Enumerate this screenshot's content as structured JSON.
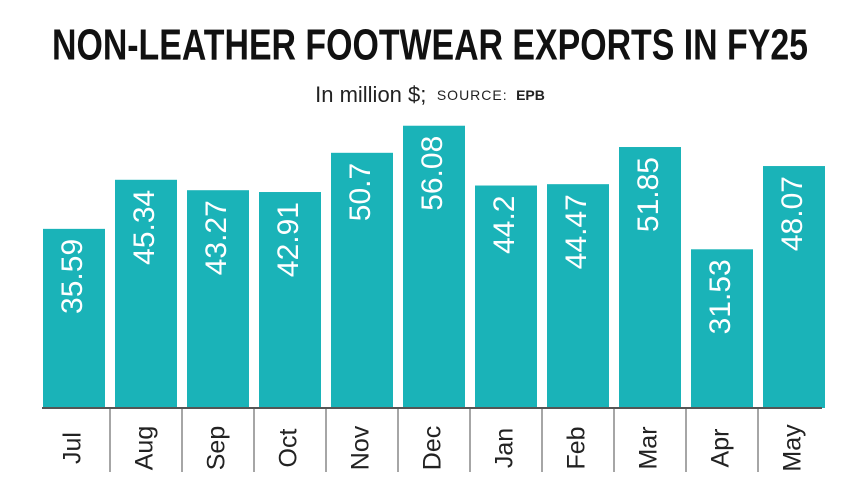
{
  "chart_data": {
    "type": "bar",
    "title": "NON-LEATHER FOOTWEAR EXPORTS IN FY25",
    "subtitle": "In million $;",
    "source_label": "SOURCE:",
    "source": "EPB",
    "categories": [
      "Jul",
      "Aug",
      "Sep",
      "Oct",
      "Nov",
      "Dec",
      "Jan",
      "Feb",
      "Mar",
      "Apr",
      "May"
    ],
    "values": [
      35.59,
      45.34,
      43.27,
      42.91,
      50.7,
      56.08,
      44.2,
      44.47,
      51.85,
      31.53,
      48.07
    ],
    "color": "#1ab3b8",
    "ylim": [
      0,
      60
    ]
  }
}
